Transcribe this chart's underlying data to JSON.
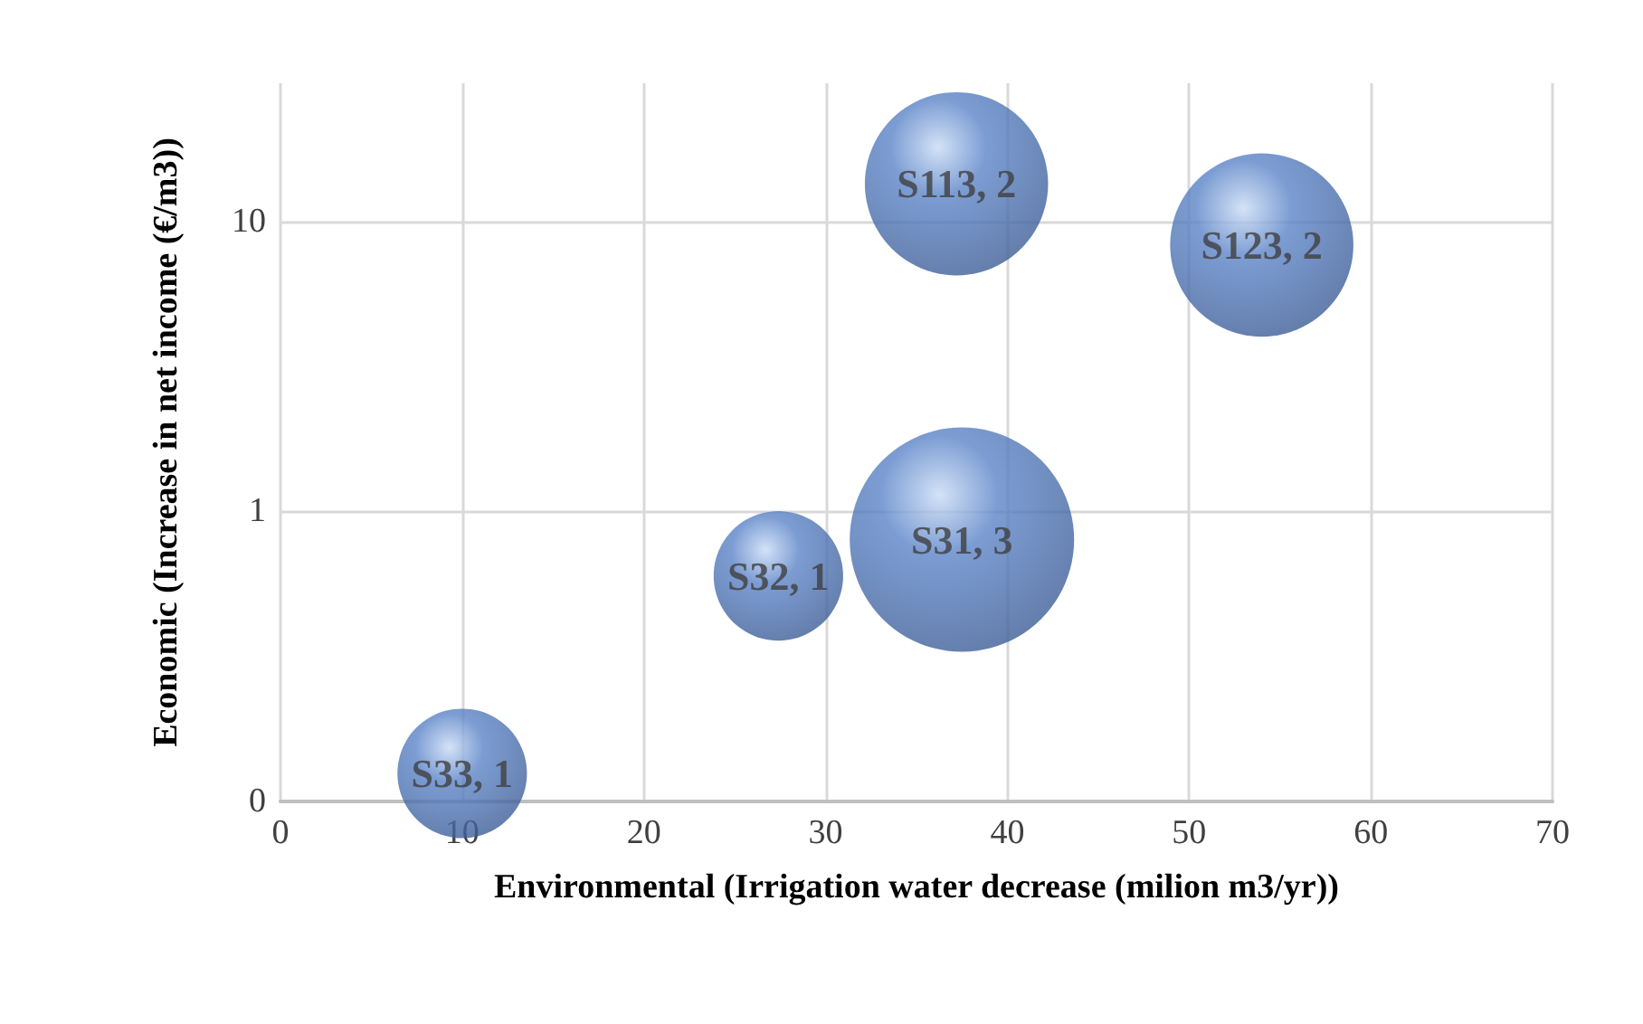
{
  "chart_data": {
    "type": "bubble",
    "xlabel": "Environmental (Irrigation water decrease (milion m3/yr))",
    "ylabel": "Economic (Increase in net income (€/m3))",
    "x": [
      10,
      27.4,
      37.5,
      37.2,
      54
    ],
    "series": [
      {
        "color": "#5b84c8",
        "values": [
          0.125,
          0.6,
          0.8,
          13.5,
          8.3
        ],
        "sizes": [
          0.333,
          0.333,
          1,
          0.667,
          0.667
        ],
        "value_labels": [
          "S33, 1",
          "S32, 1",
          "S31, 3",
          "S113, 2",
          "S123, 2"
        ]
      }
    ],
    "xlim": [
      0,
      70
    ],
    "xticks": [
      0,
      10,
      20,
      30,
      40,
      50,
      60,
      70
    ],
    "ylim": [
      0.1,
      30
    ],
    "yticks": [
      {
        "value": 0.1,
        "label": "0"
      },
      1,
      10
    ],
    "log": "y",
    "grid": true
  }
}
